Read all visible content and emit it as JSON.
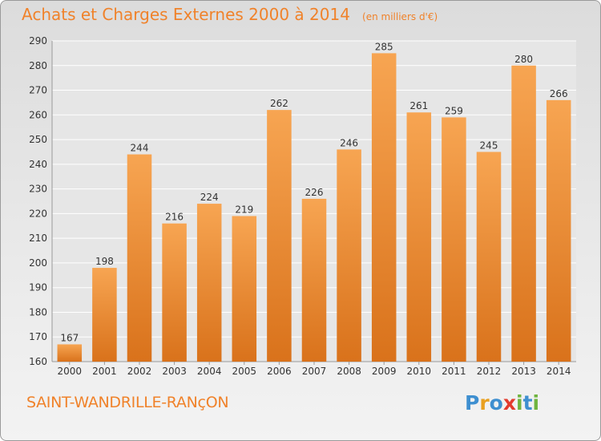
{
  "title": "Achats et Charges Externes 2000 à 2014",
  "unit": "(en milliers d'€)",
  "commune": "SAINT-WANDRILLE-RANçON",
  "logo": {
    "text": "Proxiti",
    "letters": [
      {
        "char": "P",
        "color": "#3e8fd0"
      },
      {
        "char": "r",
        "color": "#e9a020"
      },
      {
        "char": "o",
        "color": "#3e8fd0"
      },
      {
        "char": "x",
        "color": "#e23b2e"
      },
      {
        "char": "i",
        "color": "#6fb43f"
      },
      {
        "char": "t",
        "color": "#3e8fd0"
      },
      {
        "char": "i",
        "color": "#6fb43f"
      }
    ]
  },
  "colors": {
    "accent": "#f0822a",
    "bar_top": "#f7a552",
    "bar_bottom": "#d9721b",
    "grid": "#ffffff",
    "text": "#333333"
  },
  "chart_data": {
    "type": "bar",
    "categories": [
      "2000",
      "2001",
      "2002",
      "2003",
      "2004",
      "2005",
      "2006",
      "2007",
      "2008",
      "2009",
      "2010",
      "2011",
      "2012",
      "2013",
      "2014"
    ],
    "values": [
      167,
      198,
      244,
      216,
      224,
      219,
      262,
      226,
      246,
      285,
      261,
      259,
      245,
      280,
      266
    ],
    "ylim": [
      160,
      290
    ],
    "yticks": [
      160,
      170,
      180,
      190,
      200,
      210,
      220,
      230,
      240,
      250,
      260,
      270,
      280,
      290
    ],
    "grid": true,
    "legend": "none"
  }
}
